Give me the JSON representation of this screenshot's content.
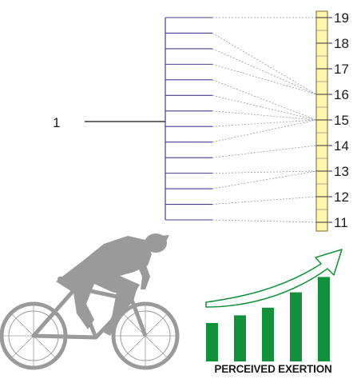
{
  "left_label": "1",
  "scale": {
    "labels": [
      "19",
      "18",
      "17",
      "16",
      "15",
      "14",
      "13",
      "12",
      "11"
    ],
    "fill_color": "#fff4b0",
    "stroke_color": "#7a6a1a"
  },
  "bracket_lines": 13,
  "bracket_color": "#4b3a8c",
  "bracket_targets": [
    19,
    16,
    16,
    16,
    15,
    15,
    15,
    15,
    15,
    14,
    13,
    13,
    12,
    11
  ],
  "caption": "PERCEIVED EXERTION",
  "bars": {
    "color": "#12913a",
    "values": [
      1,
      1.2,
      1.4,
      1.8,
      2.2
    ]
  },
  "arrow_color": "#12913a",
  "icons": [
    "cyclist-icon",
    "bar-chart-icon",
    "trend-arrow-icon"
  ]
}
